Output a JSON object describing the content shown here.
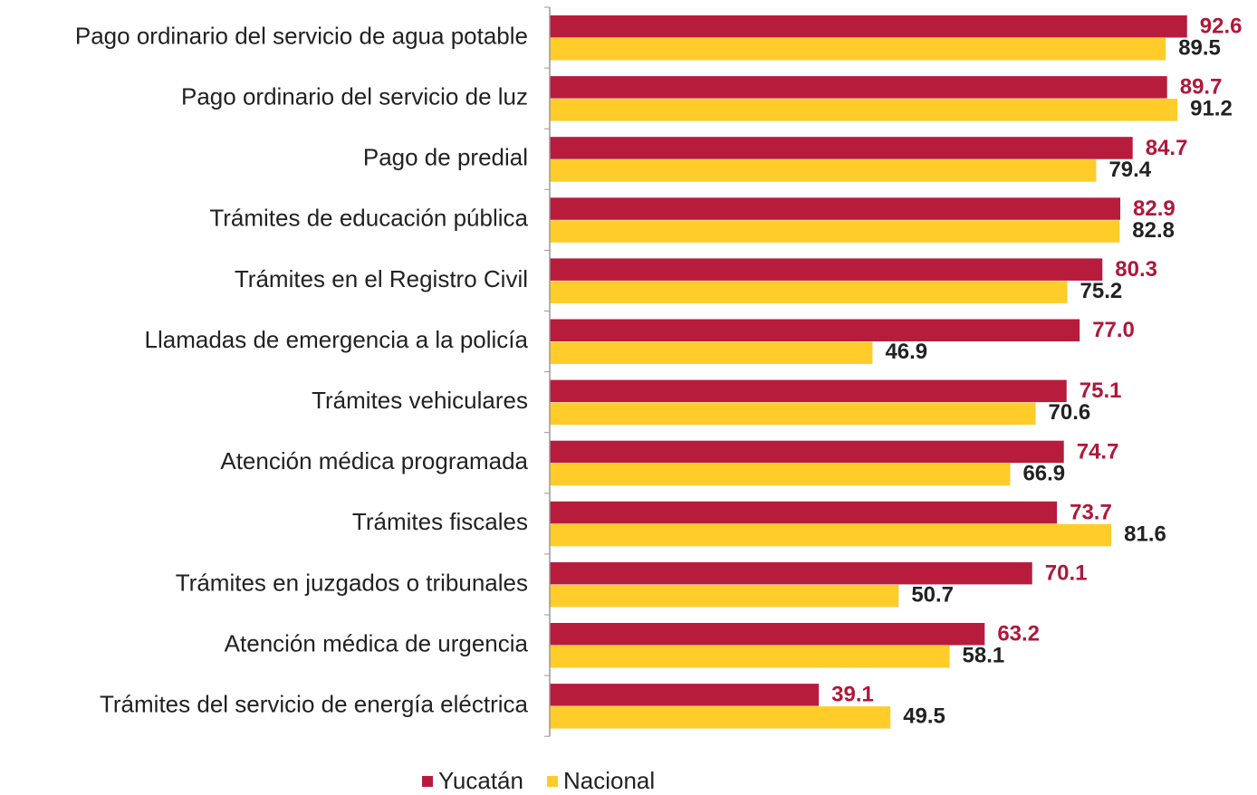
{
  "chart_data": {
    "type": "bar",
    "orientation": "horizontal",
    "categories": [
      "Pago ordinario del servicio de agua potable",
      "Pago ordinario del servicio de luz",
      "Pago de predial",
      "Trámites de educación pública",
      "Trámites en el Registro Civil",
      "Llamadas de emergencia a la policía",
      "Trámites vehiculares",
      "Atención médica programada",
      "Trámites fiscales",
      "Trámites en juzgados o tribunales",
      "Atención médica de urgencia",
      "Trámites del servicio de energía eléctrica"
    ],
    "series": [
      {
        "name": "Yucatán",
        "color": "#b81c3d",
        "label_color": "#b0173a",
        "values": [
          92.6,
          89.7,
          84.7,
          82.9,
          80.3,
          77.0,
          75.1,
          74.7,
          73.7,
          70.1,
          63.2,
          39.1
        ],
        "value_labels": [
          "92.6",
          "89.7",
          "84.7",
          "82.9",
          "80.3",
          "77.0",
          "75.1",
          "74.7",
          "73.7",
          "70.1",
          "63.2",
          "39.1"
        ]
      },
      {
        "name": "Nacional",
        "color": "#ffcc29",
        "label_color": "#222222",
        "values": [
          89.5,
          91.2,
          79.4,
          82.8,
          75.2,
          46.9,
          70.6,
          66.9,
          81.6,
          50.7,
          58.1,
          49.5
        ],
        "value_labels": [
          "89.5",
          "91.2",
          "79.4",
          "82.8",
          "75.2",
          "46.9",
          "70.6",
          "66.9",
          "81.6",
          "50.7",
          "58.1",
          "49.5"
        ]
      }
    ],
    "xlim": [
      0,
      100
    ],
    "legend": "bottom"
  }
}
